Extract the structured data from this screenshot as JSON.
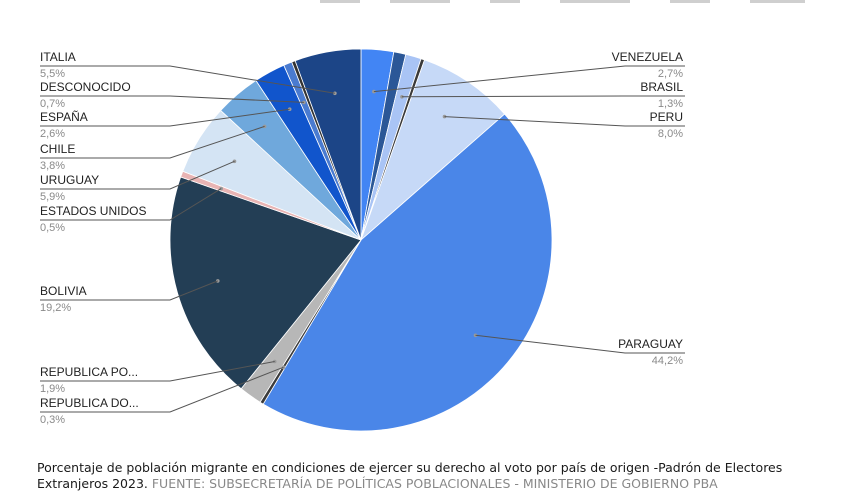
{
  "chart_data": {
    "type": "pie",
    "title": "",
    "slices": [
      {
        "label": "VENEZUELA",
        "pct_text": "2,7%",
        "value": 2.7,
        "color": "#4285f4"
      },
      {
        "label": "",
        "pct_text": "",
        "value": 1.0,
        "color": "#2b5797"
      },
      {
        "label": "BRASIL",
        "pct_text": "1,3%",
        "value": 1.3,
        "color": "#a9c4f5"
      },
      {
        "label": "",
        "pct_text": "",
        "value": 0.3,
        "color": "#3a3a3a"
      },
      {
        "label": "PERU",
        "pct_text": "8,0%",
        "value": 8.0,
        "color": "#c6d9f7"
      },
      {
        "label": "PARAGUAY",
        "pct_text": "44,2%",
        "value": 44.2,
        "color": "#4a86e8"
      },
      {
        "label": "REPUBLICA DO...",
        "pct_text": "0,3%",
        "value": 0.3,
        "color": "#3b3b3b"
      },
      {
        "label": "REPUBLICA PO...",
        "pct_text": "1,9%",
        "value": 1.9,
        "color": "#b7b7b7"
      },
      {
        "label": "BOLIVIA",
        "pct_text": "19,2%",
        "value": 19.2,
        "color": "#233e55"
      },
      {
        "label": "ESTADOS UNIDOS",
        "pct_text": "0,5%",
        "value": 0.5,
        "color": "#e8b4b4"
      },
      {
        "label": "URUGUAY",
        "pct_text": "5,9%",
        "value": 5.9,
        "color": "#d4e4f4"
      },
      {
        "label": "CHILE",
        "pct_text": "3,8%",
        "value": 3.8,
        "color": "#6fa8dc"
      },
      {
        "label": "ESPAÑA",
        "pct_text": "2,6%",
        "value": 2.6,
        "color": "#1155cc"
      },
      {
        "label": "DESCONOCIDO",
        "pct_text": "0,7%",
        "value": 0.7,
        "color": "#4a7bd0"
      },
      {
        "label": "",
        "pct_text": "",
        "value": 0.3,
        "color": "#333333"
      },
      {
        "label": "ITALIA",
        "pct_text": "5,5%",
        "value": 5.5,
        "color": "#1c4587"
      }
    ]
  },
  "caption": {
    "text": "Porcentaje de población migrante en condiciones de ejercer su derecho al voto por país de origen -Padrón de Electores Extranjeros 2023.",
    "source": "FUENTE: SUBSECRETARÍA DE POLÍTICAS POBLACIONALES - MINISTERIO DE GOBIERNO PBA"
  }
}
